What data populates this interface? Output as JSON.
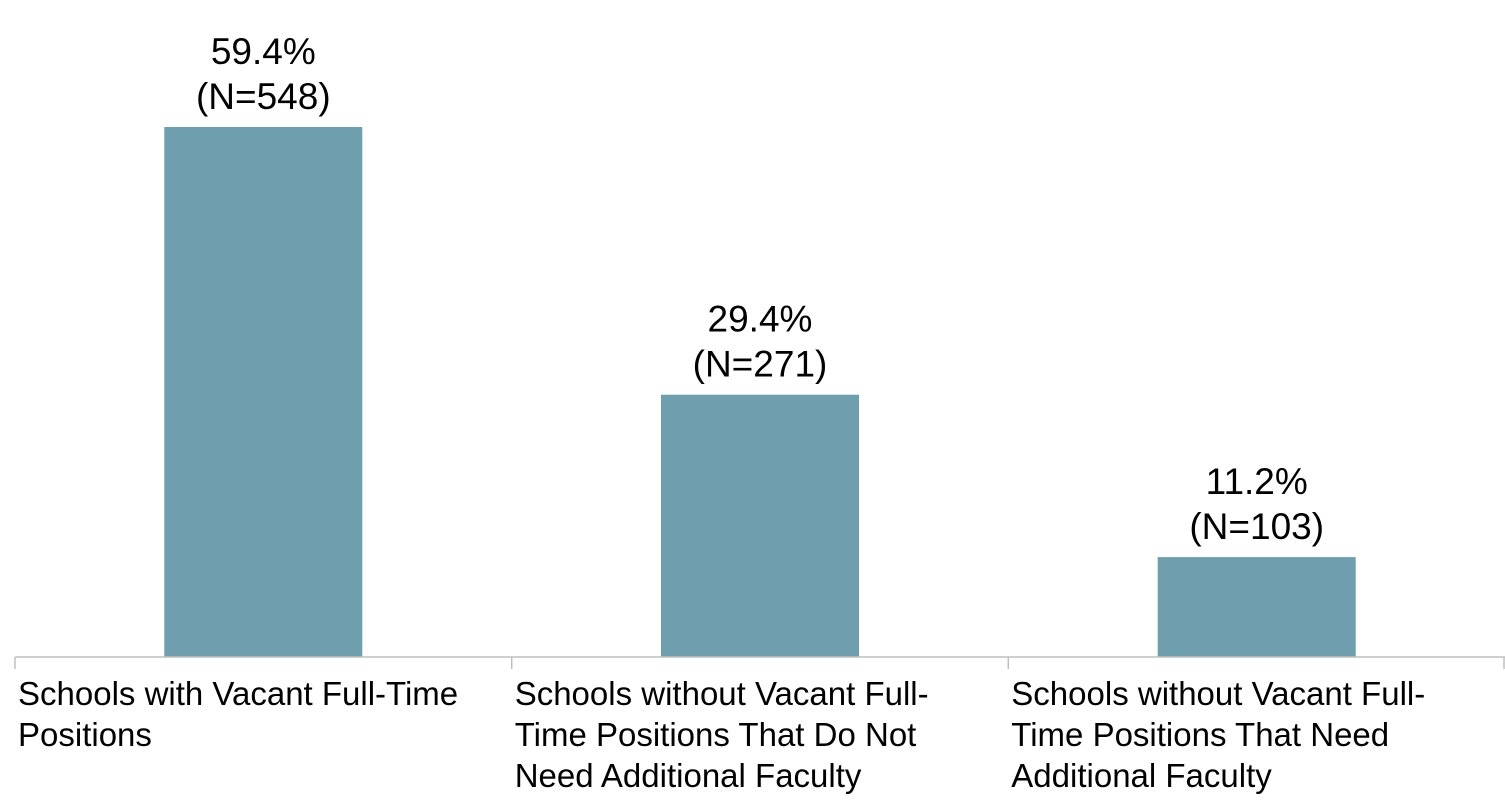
{
  "chart_data": {
    "type": "bar",
    "categories": [
      "Schools with Vacant Full-Time Positions",
      "Schools without Vacant Full-Time Positions That Do Not Need Additional Faculty",
      "Schools without Vacant Full-Time Positions That Need Additional Faculty"
    ],
    "category_label_lines": [
      [
        "Schools with Vacant Full-Time",
        "Positions"
      ],
      [
        "Schools without Vacant Full-",
        "Time Positions That Do Not",
        "Need Additional Faculty"
      ],
      [
        "Schools without Vacant Full-",
        "Time Positions That Need",
        "Additional Faculty"
      ]
    ],
    "values": [
      59.4,
      29.4,
      11.2
    ],
    "data_labels": [
      [
        "59.4%",
        "(N=548)"
      ],
      [
        "29.4%",
        "(N=271)"
      ],
      [
        "11.2%",
        "(N=103)"
      ]
    ],
    "counts": [
      548,
      271,
      103
    ],
    "title": "",
    "xlabel": "",
    "ylabel": "",
    "ylim": [
      0,
      59.4
    ],
    "grid": false,
    "legend": "none",
    "colors": {
      "bar": "#6f9fae",
      "axis": "#bfbfbf",
      "text": "#000000"
    }
  }
}
